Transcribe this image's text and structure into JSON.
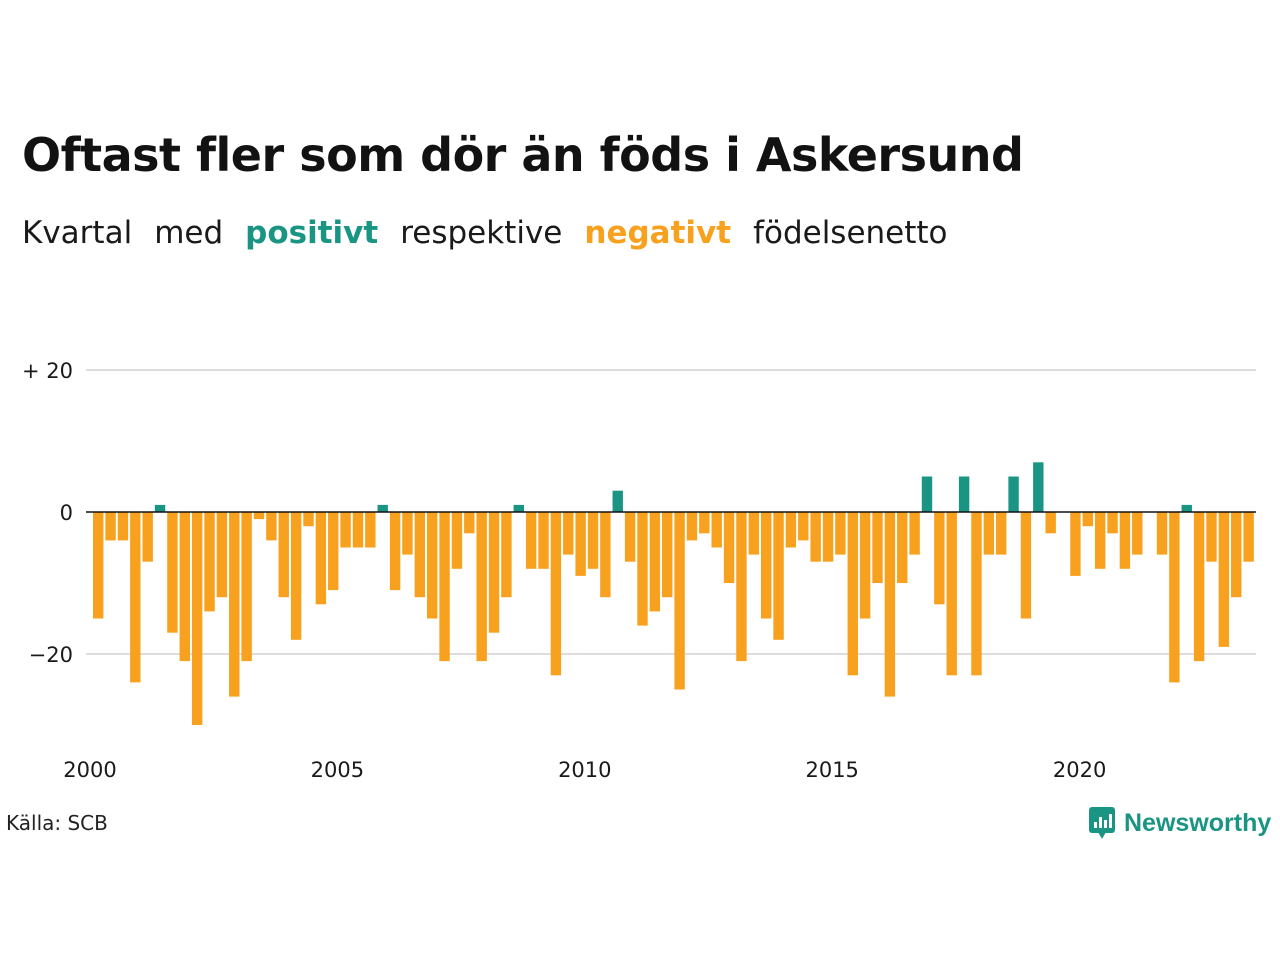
{
  "title": "Oftast fler som dör än föds i Askersund",
  "subtitle": {
    "w1": "Kvartal",
    "w2": "med",
    "positive_word": "positivt",
    "w3": "respektive",
    "negative_word": "negativt",
    "w4": "födelsenetto"
  },
  "colors": {
    "positive": "#1a9583",
    "negative": "#f7a11e",
    "grid": "#dddddd",
    "zero_line": "#111111"
  },
  "source": "Källa: SCB",
  "brand": {
    "name": "Newsworthy",
    "icon": "newsworthy-logo-icon"
  },
  "chart_data": {
    "type": "bar",
    "x_start": "2000 Q1",
    "x_ticks": [
      "2000",
      "2005",
      "2010",
      "2015",
      "2020"
    ],
    "y_ticks": [
      "+ 20",
      "0",
      "−20"
    ],
    "y_tick_values": [
      20,
      0,
      -20
    ],
    "ylim": [
      -30,
      20
    ],
    "values": [
      -15,
      -4,
      -4,
      -24,
      -7,
      1,
      -17,
      -21,
      -30,
      -14,
      -12,
      -26,
      -21,
      -1,
      -4,
      -12,
      -18,
      -2,
      -13,
      -11,
      -5,
      -5,
      -5,
      1,
      -11,
      -6,
      -12,
      -15,
      -21,
      -8,
      -3,
      -21,
      -17,
      -12,
      1,
      -8,
      -8,
      -23,
      -6,
      -9,
      -8,
      -12,
      3,
      -7,
      -16,
      -14,
      -12,
      -25,
      -4,
      -3,
      -5,
      -10,
      -21,
      -6,
      -15,
      -18,
      -5,
      -4,
      -7,
      -7,
      -6,
      -23,
      -15,
      -10,
      -26,
      -10,
      -6,
      5,
      -13,
      -23,
      5,
      -23,
      -6,
      -6,
      5,
      -15,
      7,
      -3,
      0,
      -9,
      -2,
      -8,
      -3,
      -8,
      -6,
      0,
      -6,
      -24,
      1,
      -21,
      -7,
      -19,
      -12,
      -7
    ]
  }
}
